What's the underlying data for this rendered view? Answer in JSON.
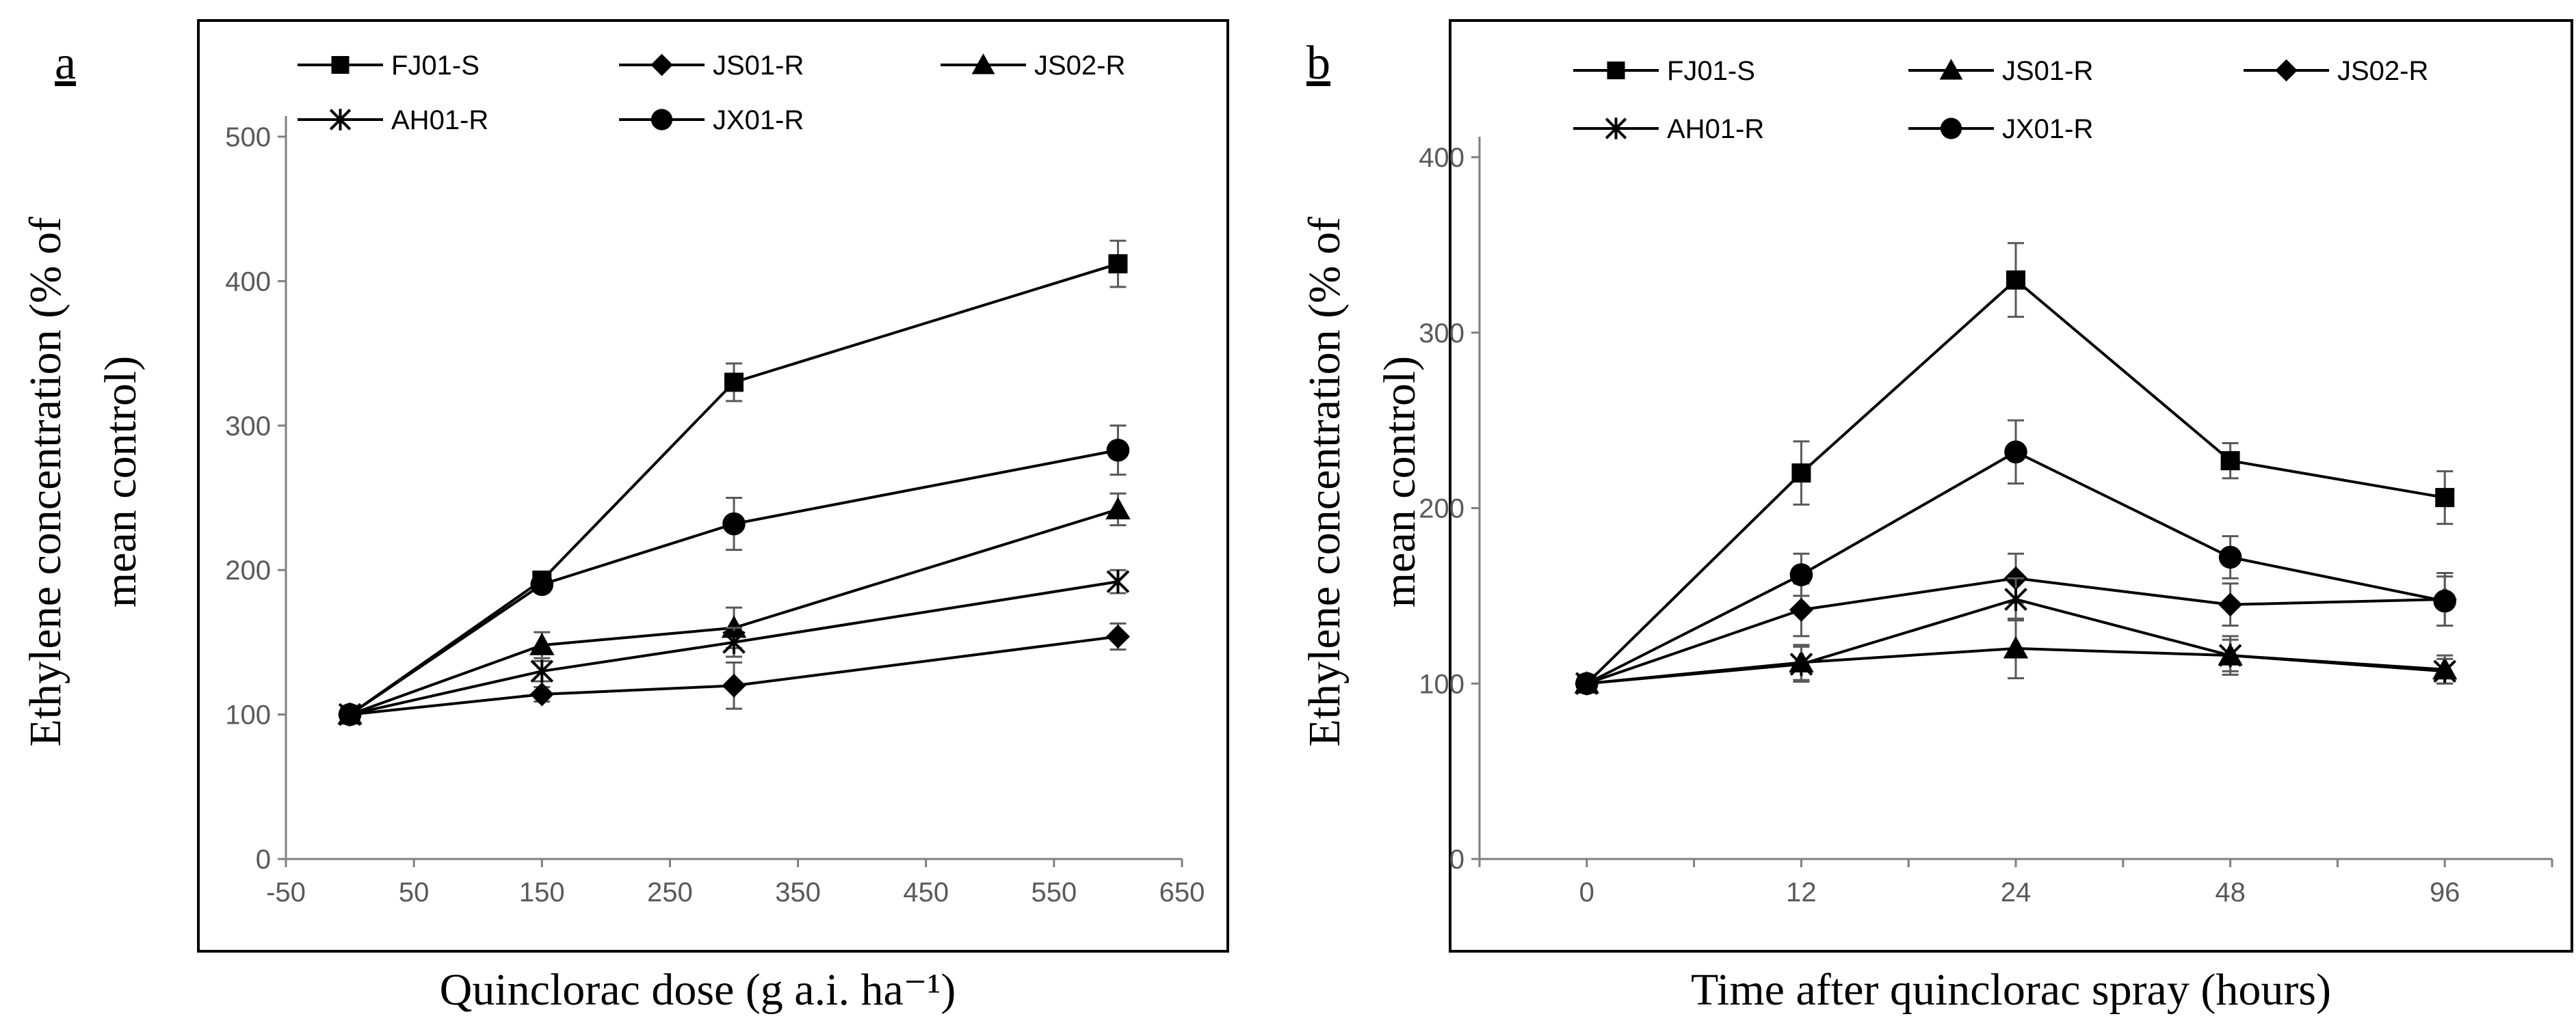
{
  "chart_data": [
    {
      "panel_label": "a",
      "type": "line",
      "xlabel": "Quinclorac dose (g a.i. ha⁻¹)",
      "ylabel": "Ethylene concentration (% of mean control)",
      "ylabel_lines": [
        "Ethylene concentration (% of",
        "mean control)"
      ],
      "x_axis_kind": "numeric",
      "xlim": [
        -50,
        650
      ],
      "xticks": [
        -50,
        50,
        150,
        250,
        350,
        450,
        550,
        650
      ],
      "ylim": [
        0,
        500
      ],
      "yticks": [
        0,
        100,
        200,
        300,
        400,
        500
      ],
      "x": [
        0,
        150,
        300,
        600
      ],
      "legend_position": "top",
      "series": [
        {
          "name": "FJ01-S",
          "marker": "square",
          "values": [
            100,
            193,
            330,
            412
          ],
          "errors": [
            0,
            6,
            13,
            16
          ]
        },
        {
          "name": "JS01-R",
          "marker": "diamond",
          "values": [
            100,
            114,
            120,
            154
          ],
          "errors": [
            0,
            5,
            16,
            9
          ]
        },
        {
          "name": "JS02-R",
          "marker": "triangle",
          "values": [
            100,
            148,
            160,
            242
          ],
          "errors": [
            0,
            9,
            14,
            11
          ]
        },
        {
          "name": "AH01-R",
          "marker": "asterisk",
          "values": [
            100,
            130,
            150,
            192
          ],
          "errors": [
            0,
            7,
            10,
            8
          ]
        },
        {
          "name": "JX01-R",
          "marker": "circle",
          "values": [
            100,
            190,
            232,
            283
          ],
          "errors": [
            0,
            5,
            18,
            17
          ]
        }
      ]
    },
    {
      "panel_label": "b",
      "type": "line",
      "xlabel": "Time after quinclorac spray (hours)",
      "ylabel": "Ethylene concentration (% of mean control)",
      "ylabel_lines": [
        "Ethylene concentration (% of",
        "mean control)"
      ],
      "x_axis_kind": "categorical",
      "categories": [
        "0",
        "12",
        "24",
        "48",
        "96"
      ],
      "ylim": [
        0,
        400
      ],
      "yticks": [
        0,
        100,
        200,
        300,
        400
      ],
      "legend_position": "top",
      "series": [
        {
          "name": "FJ01-S",
          "marker": "square",
          "values": [
            100,
            220,
            330,
            227,
            206
          ],
          "errors": [
            0,
            18,
            21,
            10,
            15
          ]
        },
        {
          "name": "JS01-R",
          "marker": "triangle",
          "values": [
            100,
            112,
            120,
            116,
            108
          ],
          "errors": [
            0,
            10,
            17,
            11,
            8
          ]
        },
        {
          "name": "JS02-R",
          "marker": "diamond",
          "values": [
            100,
            142,
            160,
            145,
            148
          ],
          "errors": [
            0,
            15,
            14,
            12,
            15
          ]
        },
        {
          "name": "AH01-R",
          "marker": "asterisk",
          "values": [
            100,
            111,
            148,
            116,
            107
          ],
          "errors": [
            0,
            10,
            12,
            9,
            7
          ]
        },
        {
          "name": "JX01-R",
          "marker": "circle",
          "values": [
            100,
            162,
            232,
            172,
            147
          ],
          "errors": [
            0,
            12,
            18,
            12,
            14
          ]
        }
      ]
    }
  ]
}
